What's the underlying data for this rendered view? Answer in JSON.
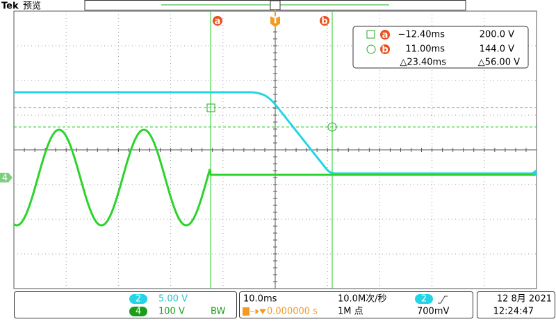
{
  "header": {
    "brand": "Tek",
    "mode": "预览"
  },
  "markers": {
    "cursor_a": "a",
    "trigger": "T",
    "cursor_b": "b",
    "ground": "4"
  },
  "readout": {
    "a_label": "a",
    "a_time": "−12.40ms",
    "a_value": "200.0 V",
    "b_label": "b",
    "b_time": "11.00ms",
    "b_value": "144.0 V",
    "delta_time": "△23.40ms",
    "delta_value": "△56.00 V"
  },
  "status": {
    "ch2_label": "2",
    "ch2_scale": "5.00 V",
    "ch4_label": "4",
    "ch4_scale": "100 V",
    "bandwidth": "BW",
    "timebase": "10.0ms",
    "trigger_position": "0.000000 s",
    "sample_rate": "10.0M次/秒",
    "record_length": "1M 点",
    "trigger_source": "2",
    "trigger_level": "700mV",
    "date": "12 8月 2021",
    "time": "12:24:47"
  }
}
